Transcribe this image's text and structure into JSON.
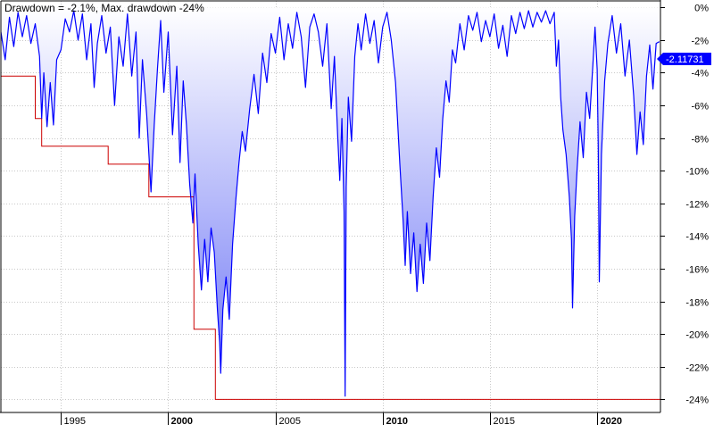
{
  "header": {
    "title": "Drawdown = -2.1%, Max. drawdown -24%"
  },
  "value_badge": {
    "text": "-2.11731"
  },
  "colors": {
    "drawdown_line": "#0000ff",
    "max_drawdown_line": "#cc0000",
    "fill_top": "#ffffff",
    "fill_bottom": "#6b73f5",
    "grid": "#c8c8c8",
    "badge": "#0000ff",
    "background": "#ffffff"
  },
  "chart_data": {
    "type": "area",
    "title": "Drawdown = -2.1%, Max. drawdown -24%",
    "xlabel": "",
    "ylabel": "",
    "xlim": [
      1992.2,
      2022.95
    ],
    "ylim": [
      -24.8,
      0.4
    ],
    "y_ticks": [
      0,
      -2,
      -4,
      -6,
      -8,
      -10,
      -12,
      -14,
      -16,
      -18,
      -20,
      -22,
      -24
    ],
    "y_tick_labels": [
      "0%",
      "-2%",
      "-4%",
      "-6%",
      "-8%",
      "-10%",
      "-12%",
      "-14%",
      "-16%",
      "-18%",
      "-20%",
      "-22%",
      "-24%"
    ],
    "x_ticks": [
      {
        "value": 1995,
        "label": "1995",
        "major": false
      },
      {
        "value": 2000,
        "label": "2000",
        "major": true
      },
      {
        "value": 2005,
        "label": "2005",
        "major": false
      },
      {
        "value": 2010,
        "label": "2010",
        "major": true
      },
      {
        "value": 2015,
        "label": "2015",
        "major": false
      },
      {
        "value": 2020,
        "label": "2020",
        "major": true
      }
    ],
    "grid": true,
    "current_value": -2.11731,
    "series": [
      {
        "name": "Drawdown",
        "style": "line-with-gradient-fill",
        "points": [
          [
            1992.2,
            -1.5
          ],
          [
            1992.4,
            -3.2
          ],
          [
            1992.6,
            -0.6
          ],
          [
            1992.8,
            -2.4
          ],
          [
            1993.0,
            -0.3
          ],
          [
            1993.2,
            -1.8
          ],
          [
            1993.4,
            -0.5
          ],
          [
            1993.6,
            -2.2
          ],
          [
            1993.8,
            -1.0
          ],
          [
            1994.0,
            -3.0
          ],
          [
            1994.1,
            -6.8
          ],
          [
            1994.2,
            -4.0
          ],
          [
            1994.35,
            -7.3
          ],
          [
            1994.5,
            -4.6
          ],
          [
            1994.65,
            -7.2
          ],
          [
            1994.8,
            -3.2
          ],
          [
            1995.0,
            -2.6
          ],
          [
            1995.2,
            -0.7
          ],
          [
            1995.4,
            -1.5
          ],
          [
            1995.6,
            -0.2
          ],
          [
            1995.8,
            -2.0
          ],
          [
            1996.0,
            -0.4
          ],
          [
            1996.2,
            -3.2
          ],
          [
            1996.4,
            -1.0
          ],
          [
            1996.55,
            -4.9
          ],
          [
            1996.7,
            -2.2
          ],
          [
            1996.9,
            -0.5
          ],
          [
            1997.1,
            -2.8
          ],
          [
            1997.3,
            -1.2
          ],
          [
            1997.5,
            -6.0
          ],
          [
            1997.7,
            -1.8
          ],
          [
            1997.9,
            -3.6
          ],
          [
            1998.1,
            -0.4
          ],
          [
            1998.3,
            -4.2
          ],
          [
            1998.5,
            -1.5
          ],
          [
            1998.65,
            -8.0
          ],
          [
            1998.8,
            -3.2
          ],
          [
            1999.0,
            -6.6
          ],
          [
            1999.2,
            -11.3
          ],
          [
            1999.35,
            -7.2
          ],
          [
            1999.5,
            -3.8
          ],
          [
            1999.65,
            -0.8
          ],
          [
            1999.8,
            -5.2
          ],
          [
            2000.0,
            -1.5
          ],
          [
            2000.2,
            -7.8
          ],
          [
            2000.4,
            -3.6
          ],
          [
            2000.55,
            -9.5
          ],
          [
            2000.7,
            -4.5
          ],
          [
            2000.85,
            -7.2
          ],
          [
            2001.0,
            -10.8
          ],
          [
            2001.15,
            -13.2
          ],
          [
            2001.25,
            -10.2
          ],
          [
            2001.4,
            -14.5
          ],
          [
            2001.55,
            -17.3
          ],
          [
            2001.7,
            -14.2
          ],
          [
            2001.85,
            -16.8
          ],
          [
            2002.0,
            -13.5
          ],
          [
            2002.15,
            -15.0
          ],
          [
            2002.3,
            -18.6
          ],
          [
            2002.4,
            -20.5
          ],
          [
            2002.45,
            -22.4
          ],
          [
            2002.55,
            -18.5
          ],
          [
            2002.7,
            -16.5
          ],
          [
            2002.85,
            -19.1
          ],
          [
            2003.0,
            -14.5
          ],
          [
            2003.15,
            -11.8
          ],
          [
            2003.3,
            -9.5
          ],
          [
            2003.45,
            -7.6
          ],
          [
            2003.6,
            -8.8
          ],
          [
            2003.8,
            -6.2
          ],
          [
            2004.0,
            -4.1
          ],
          [
            2004.2,
            -6.5
          ],
          [
            2004.4,
            -2.8
          ],
          [
            2004.6,
            -4.6
          ],
          [
            2004.8,
            -1.6
          ],
          [
            2005.0,
            -2.8
          ],
          [
            2005.2,
            -0.6
          ],
          [
            2005.4,
            -3.2
          ],
          [
            2005.6,
            -1.0
          ],
          [
            2005.8,
            -2.5
          ],
          [
            2006.0,
            -0.3
          ],
          [
            2006.2,
            -1.8
          ],
          [
            2006.4,
            -4.9
          ],
          [
            2006.6,
            -1.2
          ],
          [
            2006.8,
            -0.4
          ],
          [
            2007.0,
            -1.5
          ],
          [
            2007.2,
            -3.6
          ],
          [
            2007.4,
            -1.0
          ],
          [
            2007.6,
            -6.2
          ],
          [
            2007.75,
            -3.0
          ],
          [
            2007.9,
            -7.8
          ],
          [
            2008.0,
            -10.6
          ],
          [
            2008.1,
            -6.8
          ],
          [
            2008.2,
            -12.5
          ],
          [
            2008.25,
            -23.8
          ],
          [
            2008.3,
            -11.0
          ],
          [
            2008.4,
            -5.5
          ],
          [
            2008.55,
            -8.2
          ],
          [
            2008.7,
            -3.0
          ],
          [
            2008.85,
            -1.0
          ],
          [
            2009.0,
            -2.6
          ],
          [
            2009.2,
            -0.4
          ],
          [
            2009.4,
            -2.2
          ],
          [
            2009.6,
            -0.8
          ],
          [
            2009.8,
            -3.4
          ],
          [
            2010.0,
            -1.2
          ],
          [
            2010.2,
            -0.3
          ],
          [
            2010.4,
            -2.0
          ],
          [
            2010.6,
            -4.6
          ],
          [
            2010.8,
            -9.6
          ],
          [
            2010.95,
            -13.0
          ],
          [
            2011.05,
            -15.8
          ],
          [
            2011.15,
            -12.5
          ],
          [
            2011.3,
            -16.3
          ],
          [
            2011.45,
            -13.8
          ],
          [
            2011.6,
            -17.4
          ],
          [
            2011.75,
            -14.5
          ],
          [
            2011.9,
            -16.9
          ],
          [
            2012.05,
            -13.2
          ],
          [
            2012.2,
            -15.5
          ],
          [
            2012.35,
            -11.6
          ],
          [
            2012.5,
            -8.6
          ],
          [
            2012.65,
            -10.4
          ],
          [
            2012.8,
            -6.8
          ],
          [
            2012.95,
            -4.5
          ],
          [
            2013.1,
            -5.8
          ],
          [
            2013.25,
            -2.6
          ],
          [
            2013.4,
            -3.4
          ],
          [
            2013.6,
            -1.0
          ],
          [
            2013.8,
            -2.6
          ],
          [
            2014.0,
            -0.5
          ],
          [
            2014.2,
            -1.4
          ],
          [
            2014.4,
            -0.3
          ],
          [
            2014.6,
            -2.1
          ],
          [
            2014.8,
            -0.8
          ],
          [
            2015.0,
            -1.8
          ],
          [
            2015.2,
            -0.4
          ],
          [
            2015.4,
            -2.5
          ],
          [
            2015.6,
            -1.1
          ],
          [
            2015.8,
            -3.0
          ],
          [
            2016.0,
            -0.5
          ],
          [
            2016.2,
            -1.6
          ],
          [
            2016.4,
            -0.3
          ],
          [
            2016.6,
            -1.3
          ],
          [
            2016.8,
            -0.2
          ],
          [
            2017.0,
            -1.2
          ],
          [
            2017.2,
            -0.3
          ],
          [
            2017.4,
            -0.9
          ],
          [
            2017.6,
            -0.2
          ],
          [
            2017.8,
            -1.0
          ],
          [
            2018.0,
            -0.3
          ],
          [
            2018.1,
            -3.6
          ],
          [
            2018.2,
            -2.0
          ],
          [
            2018.3,
            -5.5
          ],
          [
            2018.4,
            -7.5
          ],
          [
            2018.55,
            -9.0
          ],
          [
            2018.7,
            -11.6
          ],
          [
            2018.8,
            -14.2
          ],
          [
            2018.85,
            -18.4
          ],
          [
            2018.95,
            -12.8
          ],
          [
            2019.05,
            -10.2
          ],
          [
            2019.2,
            -7.0
          ],
          [
            2019.35,
            -9.2
          ],
          [
            2019.5,
            -5.2
          ],
          [
            2019.65,
            -6.8
          ],
          [
            2019.8,
            -3.5
          ],
          [
            2019.9,
            -1.2
          ],
          [
            2020.0,
            -3.8
          ],
          [
            2020.05,
            -8.5
          ],
          [
            2020.1,
            -16.8
          ],
          [
            2020.2,
            -9.0
          ],
          [
            2020.35,
            -4.5
          ],
          [
            2020.5,
            -2.2
          ],
          [
            2020.7,
            -0.5
          ],
          [
            2020.9,
            -2.8
          ],
          [
            2021.1,
            -1.0
          ],
          [
            2021.3,
            -4.2
          ],
          [
            2021.5,
            -2.0
          ],
          [
            2021.7,
            -5.4
          ],
          [
            2021.85,
            -9.0
          ],
          [
            2022.0,
            -6.4
          ],
          [
            2022.15,
            -8.4
          ],
          [
            2022.3,
            -4.2
          ],
          [
            2022.45,
            -2.3
          ],
          [
            2022.6,
            -5.0
          ],
          [
            2022.75,
            -2.2
          ],
          [
            2022.9,
            -2.1
          ]
        ]
      },
      {
        "name": "Max. drawdown",
        "style": "step",
        "points": [
          [
            1992.2,
            -4.2
          ],
          [
            1993.8,
            -4.2
          ],
          [
            1993.8,
            -6.8
          ],
          [
            1994.1,
            -6.8
          ],
          [
            1994.1,
            -8.5
          ],
          [
            1997.2,
            -8.5
          ],
          [
            1997.2,
            -9.6
          ],
          [
            1999.1,
            -9.6
          ],
          [
            1999.1,
            -11.6
          ],
          [
            2001.2,
            -11.6
          ],
          [
            2001.2,
            -19.7
          ],
          [
            2002.2,
            -19.7
          ],
          [
            2002.2,
            -24.0
          ],
          [
            2022.95,
            -24.0
          ]
        ]
      }
    ]
  }
}
